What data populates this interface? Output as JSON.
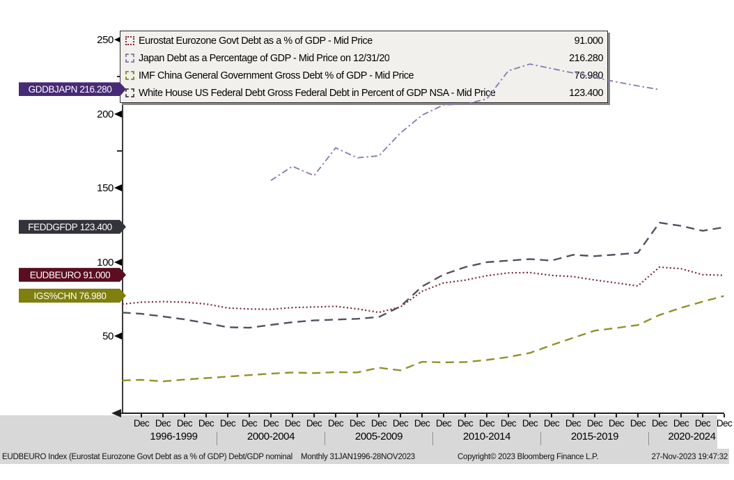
{
  "chart_data": {
    "type": "line",
    "title": "",
    "x_month_label": "Dec",
    "x_dec_year_start": 1996,
    "x_dec_year_end": 2023,
    "x_groups": [
      {
        "label": "1996-1999",
        "start": 1996,
        "end": 1999
      },
      {
        "label": "2000-2004",
        "start": 2000,
        "end": 2004
      },
      {
        "label": "2005-2009",
        "start": 2005,
        "end": 2009
      },
      {
        "label": "2010-2014",
        "start": 2010,
        "end": 2014
      },
      {
        "label": "2015-2019",
        "start": 2015,
        "end": 2019
      },
      {
        "label": "2020-2024",
        "start": 2020,
        "end": 2024
      }
    ],
    "y_ticks": [
      50,
      100,
      150,
      200,
      250
    ],
    "y_minor_ticks": [
      75,
      125,
      175,
      225
    ],
    "ylim": [
      0,
      256
    ],
    "grid": false,
    "legend_position": "top",
    "series": [
      {
        "id": "EUDBEURO",
        "name": "Eurostat Eurozone Govt Debt as a % of GDP - Mid Price",
        "value_label": "91.000",
        "color": "#7a2433",
        "dash": "dotted",
        "width": 2.2,
        "points": [
          [
            1996.04,
            71.5
          ],
          [
            1996.92,
            72.8
          ],
          [
            1997.92,
            73.2
          ],
          [
            1998.92,
            72.8
          ],
          [
            1999.92,
            71.6
          ],
          [
            2000.92,
            68.9
          ],
          [
            2001.92,
            68.2
          ],
          [
            2002.92,
            68.0
          ],
          [
            2003.92,
            69.2
          ],
          [
            2004.92,
            69.6
          ],
          [
            2005.92,
            70.0
          ],
          [
            2006.92,
            68.3
          ],
          [
            2007.92,
            65.9
          ],
          [
            2008.92,
            69.6
          ],
          [
            2009.92,
            80.2
          ],
          [
            2010.92,
            85.8
          ],
          [
            2011.92,
            87.7
          ],
          [
            2012.92,
            90.7
          ],
          [
            2013.92,
            92.6
          ],
          [
            2014.92,
            92.8
          ],
          [
            2015.92,
            90.9
          ],
          [
            2016.92,
            90.1
          ],
          [
            2017.92,
            87.8
          ],
          [
            2018.92,
            85.8
          ],
          [
            2019.92,
            83.8
          ],
          [
            2020.92,
            96.5
          ],
          [
            2021.92,
            95.4
          ],
          [
            2022.92,
            91.4
          ],
          [
            2023.9,
            91.0
          ]
        ]
      },
      {
        "id": "GDDBJAPN",
        "name": "Japan Debt as a Percentage of GDP - Mid Price on 12/31/20",
        "value_label": "216.280",
        "color": "#8f7bb2",
        "dash": "dashdot",
        "width": 1.9,
        "points": [
          [
            2002.92,
            155.0
          ],
          [
            2003.92,
            164.5
          ],
          [
            2004.92,
            158.2
          ],
          [
            2005.92,
            177.0
          ],
          [
            2006.92,
            170.3
          ],
          [
            2007.92,
            171.6
          ],
          [
            2008.92,
            187.0
          ],
          [
            2009.92,
            199.0
          ],
          [
            2010.92,
            206.0
          ],
          [
            2011.92,
            206.5
          ],
          [
            2012.92,
            210.0
          ],
          [
            2013.92,
            229.0
          ],
          [
            2014.92,
            233.5
          ],
          [
            2015.92,
            230.5
          ],
          [
            2016.92,
            227.5
          ],
          [
            2017.92,
            224.5
          ],
          [
            2018.92,
            221.5
          ],
          [
            2019.92,
            218.8
          ],
          [
            2020.92,
            216.28
          ]
        ]
      },
      {
        "id": "IGS%CHN",
        "name": "IMF China General Government Gross Debt % of GDP - Mid Price",
        "value_label": "76.980",
        "color": "#91912b",
        "dash": "dashed",
        "width": 2.4,
        "points": [
          [
            1996.04,
            20.0
          ],
          [
            1996.92,
            20.4
          ],
          [
            1997.92,
            19.4
          ],
          [
            1998.92,
            20.6
          ],
          [
            1999.92,
            21.6
          ],
          [
            2000.92,
            22.6
          ],
          [
            2001.92,
            23.6
          ],
          [
            2002.92,
            24.6
          ],
          [
            2003.92,
            25.4
          ],
          [
            2004.92,
            25.0
          ],
          [
            2005.92,
            25.6
          ],
          [
            2006.92,
            25.4
          ],
          [
            2007.92,
            28.6
          ],
          [
            2008.92,
            26.8
          ],
          [
            2009.92,
            32.6
          ],
          [
            2010.92,
            32.2
          ],
          [
            2011.92,
            32.4
          ],
          [
            2012.92,
            33.8
          ],
          [
            2013.92,
            35.8
          ],
          [
            2014.92,
            38.6
          ],
          [
            2015.92,
            43.8
          ],
          [
            2016.92,
            48.8
          ],
          [
            2017.92,
            53.6
          ],
          [
            2018.92,
            55.4
          ],
          [
            2019.92,
            57.4
          ],
          [
            2020.92,
            64.2
          ],
          [
            2021.92,
            69.0
          ],
          [
            2022.92,
            73.2
          ],
          [
            2023.9,
            76.98
          ]
        ]
      },
      {
        "id": "FEDDGFDP",
        "name": "White House US Federal Debt Gross Federal Debt in Percent of GDP NSA - Mid Price",
        "value_label": "123.400",
        "color": "#545060",
        "dash": "dashed",
        "width": 2.4,
        "points": [
          [
            1996.04,
            65.8
          ],
          [
            1996.92,
            65.0
          ],
          [
            1997.92,
            63.2
          ],
          [
            1998.92,
            61.2
          ],
          [
            1999.92,
            58.7
          ],
          [
            2000.92,
            55.9
          ],
          [
            2001.92,
            55.6
          ],
          [
            2002.92,
            57.5
          ],
          [
            2003.92,
            59.3
          ],
          [
            2004.92,
            60.5
          ],
          [
            2005.92,
            61.1
          ],
          [
            2006.92,
            61.6
          ],
          [
            2007.92,
            62.8
          ],
          [
            2008.92,
            69.9
          ],
          [
            2009.92,
            83.4
          ],
          [
            2010.92,
            91.5
          ],
          [
            2011.92,
            96.5
          ],
          [
            2012.92,
            99.8
          ],
          [
            2013.92,
            100.9
          ],
          [
            2014.92,
            101.9
          ],
          [
            2015.92,
            100.9
          ],
          [
            2016.92,
            104.8
          ],
          [
            2017.92,
            103.9
          ],
          [
            2018.92,
            105.0
          ],
          [
            2019.92,
            106.2
          ],
          [
            2020.92,
            126.5
          ],
          [
            2021.92,
            124.3
          ],
          [
            2022.92,
            121.0
          ],
          [
            2023.9,
            123.4
          ]
        ]
      }
    ]
  },
  "badges": [
    {
      "ticker": "GDDBJAPN",
      "value": "216.280",
      "color": "#472a75"
    },
    {
      "ticker": "FEDDGFDP",
      "value": "123.400",
      "color": "#33333b"
    },
    {
      "ticker": "EUDBEURO",
      "value": "91.000",
      "color": "#5a0e20"
    },
    {
      "ticker": "IGS%CHN",
      "value": "76.980",
      "color": "#7f7f0e"
    }
  ],
  "statusbar": {
    "left": "EUDBEURO Index (Eurostat Eurozone Govt Debt as a % of GDP) Debt/GDP nominal",
    "period": "Monthly 31JAN1996-28NOV2023",
    "copyright": "Copyright© 2023 Bloomberg Finance L.P.",
    "timestamp": "27-Nov-2023 19:47:32"
  }
}
